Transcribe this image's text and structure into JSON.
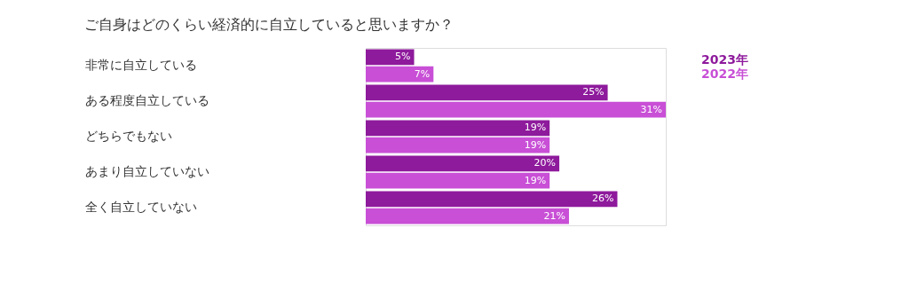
{
  "chart_data": {
    "type": "bar",
    "orientation": "horizontal",
    "title": "ご自身はどのくらい経済的に自立していると思いますか？",
    "categories": [
      "非常に自立している",
      "ある程度自立している",
      "どちらでもない",
      "あまり自立していない",
      "全く自立していない"
    ],
    "series": [
      {
        "name": "2023年",
        "color": "#8e1a9c",
        "values": [
          5,
          25,
          19,
          20,
          26
        ],
        "value_labels": [
          "5%",
          "25%",
          "19%",
          "20%",
          "26%"
        ]
      },
      {
        "name": "2022年",
        "color": "#c84fd6",
        "values": [
          7,
          31,
          19,
          19,
          21
        ],
        "value_labels": [
          "7%",
          "31%",
          "19%",
          "19%",
          "21%"
        ]
      }
    ],
    "tick_labels": "y",
    "legend": "top right"
  }
}
